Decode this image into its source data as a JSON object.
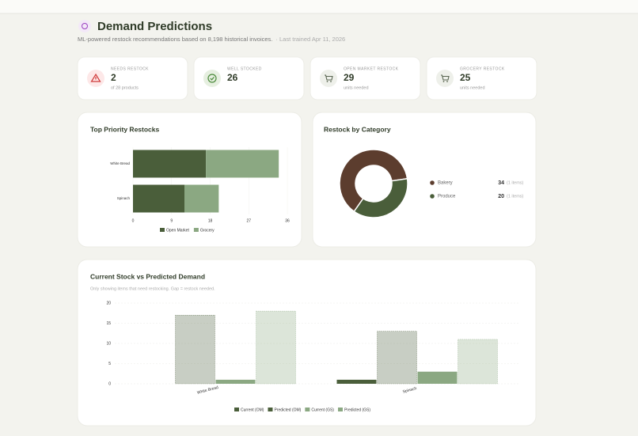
{
  "header": {
    "title": "Demand Predictions",
    "subtitle": "ML-powered restock recommendations based on 8,198 historical invoices.",
    "trained": "· Last trained Apr 11, 2026"
  },
  "cards": [
    {
      "label": "NEEDS RESTOCK",
      "value": 2,
      "sub": "of 28 products"
    },
    {
      "label": "WELL STOCKED",
      "value": 26
    },
    {
      "label": "OPEN MARKET RESTOCK",
      "value": 29,
      "sub": "units needed"
    },
    {
      "label": "GROCERY RESTOCK",
      "value": 25,
      "sub": "units needed"
    }
  ],
  "chart_data": [
    {
      "type": "hbar",
      "stacked": true,
      "title": "Top Priority Restocks",
      "categories": [
        "White Bread",
        "Spinach"
      ],
      "series": [
        {
          "name": "Open Market",
          "color": "#4a5e3a",
          "values": [
            17,
            12
          ]
        },
        {
          "name": "Grocery",
          "color": "#8ba882",
          "values": [
            17,
            8
          ]
        }
      ],
      "xlim": [
        0,
        36
      ],
      "xticks": [
        0,
        9,
        18,
        27,
        36
      ],
      "legend": "bottom"
    },
    {
      "type": "pie",
      "donut": true,
      "title": "Restock by Category",
      "categories": [
        "Bakery",
        "Produce"
      ],
      "values": [
        34,
        20
      ],
      "item_labels": [
        "(1 items)",
        "(1 items)"
      ],
      "colors": [
        "#5c3d2e",
        "#4a5e3a"
      ],
      "legend": "right"
    },
    {
      "type": "bar",
      "title": "Current Stock vs Predicted Demand",
      "subtitle": "Only showing items that need restocking. Gap = restock needed.",
      "categories": [
        "White Bread",
        "Spinach"
      ],
      "series": [
        {
          "name": "Current (OM)",
          "color": "#4a5e3a",
          "values": [
            0,
            1
          ]
        },
        {
          "name": "Predicted (OM)",
          "color": "#4a5e3a",
          "pattern": "dashed",
          "values": [
            17,
            13
          ]
        },
        {
          "name": "Current (GS)",
          "color": "#8ba882",
          "values": [
            1,
            3
          ]
        },
        {
          "name": "Predicted (GS)",
          "color": "#8ba882",
          "pattern": "dashed",
          "values": [
            18,
            11
          ]
        }
      ],
      "ylim": [
        0,
        20
      ],
      "yticks": [
        0,
        5,
        10,
        15,
        20
      ],
      "grid": true,
      "legend": "bottom"
    }
  ]
}
